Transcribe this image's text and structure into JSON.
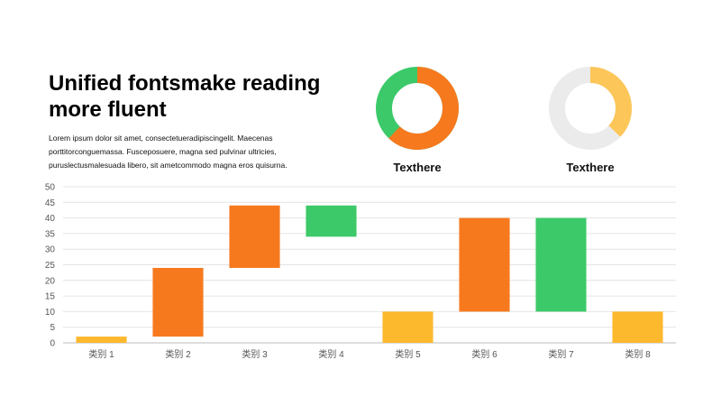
{
  "slide": {
    "title": "Unified fontsmake reading more fluent",
    "body": "Lorem ipsum dolor sit amet, consectetueradipiscingelit. Maecenas porttitorconguemassa. Fusceposuere, magna sed pulvinar ultricies, puruslectusmalesuada libero, sit ametcommodo magna eros quisurna."
  },
  "donuts": [
    {
      "label": "Texthere",
      "fraction": 0.62,
      "color": "#f7791e",
      "base_color": "#3cc969"
    },
    {
      "label": "Texthere",
      "fraction": 0.37,
      "color": "#fdc659",
      "base_color": "#ebebeb"
    }
  ],
  "colors": {
    "orange": "#f7791e",
    "green": "#3cc969",
    "yellow": "#fdb92e",
    "grid": "#e4e4e4",
    "axis": "#bbbbbb"
  },
  "chart_data": {
    "type": "bar",
    "subtype": "floating",
    "categories": [
      "类别 1",
      "类别 2",
      "类别 3",
      "类别 4",
      "类别 5",
      "类别 6",
      "类别 7",
      "类别 8"
    ],
    "ranges": [
      [
        0,
        2
      ],
      [
        2,
        24
      ],
      [
        24,
        44
      ],
      [
        34,
        44
      ],
      [
        0,
        10
      ],
      [
        10,
        40
      ],
      [
        10,
        40
      ],
      [
        0,
        10
      ]
    ],
    "bar_colors": [
      "yellow",
      "orange",
      "orange",
      "green",
      "yellow",
      "orange",
      "green",
      "yellow"
    ],
    "ylim": [
      0,
      50
    ],
    "yticks": [
      0,
      5,
      10,
      15,
      20,
      25,
      30,
      35,
      40,
      45,
      50
    ],
    "grid": true,
    "legend": "none"
  }
}
